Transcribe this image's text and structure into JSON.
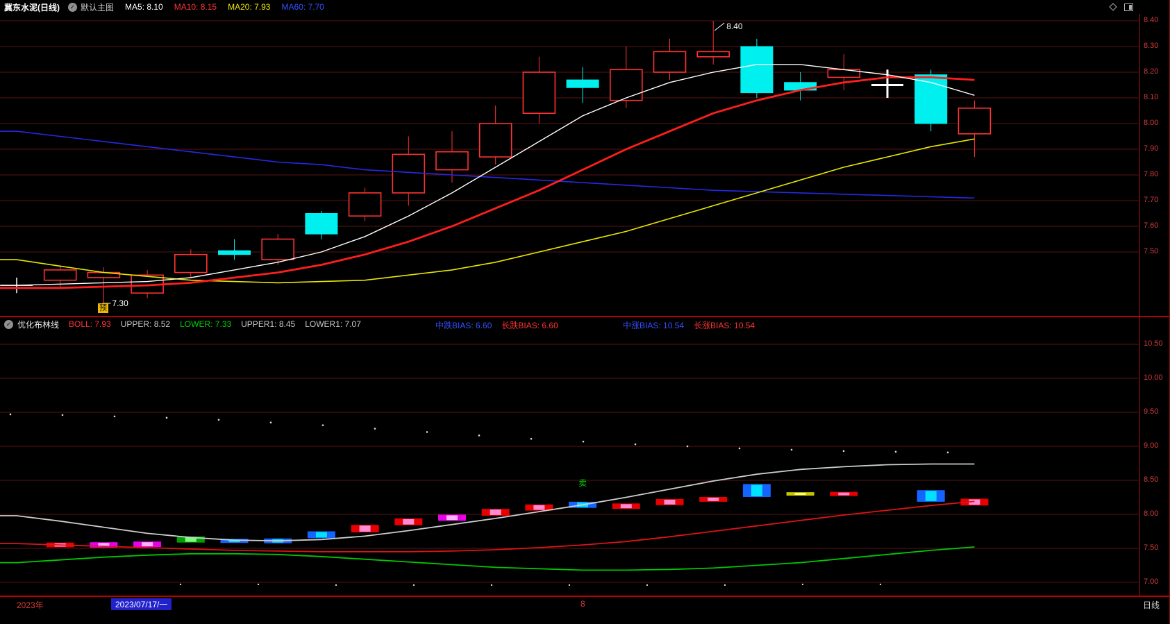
{
  "top_bar": {
    "title": "冀东水泥(日线)",
    "layout_label": "默认主图",
    "ma": [
      {
        "label": "MA5: 8.10",
        "color": "#ffffff"
      },
      {
        "label": "MA10: 8.15",
        "color": "#ff3232"
      },
      {
        "label": "MA20: 7.93",
        "color": "#e8e800"
      },
      {
        "label": "MA60: 7.70",
        "color": "#3250ff"
      }
    ]
  },
  "icons": {
    "check": "✓"
  },
  "indicator_bar": {
    "name": "优化布林线",
    "boll_fields": [
      {
        "label": "BOLL: 7.93",
        "color": "#ff3232"
      },
      {
        "label": "UPPER: 8.52",
        "color": "#c8c8c8"
      },
      {
        "label": "LOWER: 7.33",
        "color": "#00d200"
      },
      {
        "label": "UPPER1: 8.45",
        "color": "#c8c8c8"
      },
      {
        "label": "LOWER1: 7.07",
        "color": "#c8c8c8"
      }
    ],
    "bias_mid": [
      {
        "label": "中跌BIAS: 6.60",
        "color": "#3250ff"
      },
      {
        "label": "长跌BIAS: 6.60",
        "color": "#ff3232"
      }
    ],
    "bias_long": [
      {
        "label": "中涨BIAS: 10.54",
        "color": "#3250ff"
      },
      {
        "label": "长涨BIAS: 10.54",
        "color": "#ff3232"
      }
    ]
  },
  "bottom_bar": {
    "year": "2023年",
    "date": "2023/07/17/一",
    "month_marker": "8",
    "period": "日线"
  },
  "chart_data": {
    "type": "candlestick",
    "flag": "预",
    "main_axis": [
      "8.40",
      "8.30",
      "8.20",
      "8.10",
      "8.00",
      "7.90",
      "7.80",
      "7.70",
      "7.60",
      "7.50"
    ],
    "lower_axis": [
      "10.50",
      "10.00",
      "9.50",
      "9.00",
      "8.50",
      "8.00",
      "7.50",
      "7.00"
    ],
    "colors": {
      "up": "#ff3232",
      "down": "#00f0f0",
      "grid": "#571414",
      "axis_text": "#d23c3c",
      "ma5": "#ffffff",
      "ma10": "#ff1e1e",
      "ma20": "#e8e800",
      "ma60": "#2828e6",
      "boll_mid": "#cccccc",
      "boll_lower": "#dd1414",
      "boll_green": "#00c800",
      "bars": {
        "red": {
          "outer": "#e80000",
          "inner": "#ff8ad8"
        },
        "blue": {
          "outer": "#1464ff",
          "inner": "#00e0ff"
        },
        "green": {
          "outer": "#00a000",
          "inner": "#7dff7d"
        },
        "magenta": {
          "outer": "#e800e8",
          "inner": "#ffb0ff"
        },
        "yellow": {
          "outer": "#c8c800",
          "inner": "#ffff80"
        }
      }
    },
    "candles": [
      {
        "t": "cross",
        "o": 7.37,
        "c": 7.37,
        "h": 7.4,
        "l": 7.34
      },
      {
        "t": "up",
        "o": 7.39,
        "c": 7.43,
        "h": 7.45,
        "l": 7.36
      },
      {
        "t": "up",
        "o": 7.4,
        "c": 7.42,
        "h": 7.44,
        "l": 7.3
      },
      {
        "t": "up",
        "o": 7.34,
        "c": 7.41,
        "h": 7.43,
        "l": 7.32
      },
      {
        "t": "up",
        "o": 7.42,
        "c": 7.49,
        "h": 7.51,
        "l": 7.4
      },
      {
        "t": "down",
        "o": 7.505,
        "c": 7.49,
        "h": 7.55,
        "l": 7.47
      },
      {
        "t": "up",
        "o": 7.47,
        "c": 7.55,
        "h": 7.57,
        "l": 7.45
      },
      {
        "t": "down",
        "o": 7.65,
        "c": 7.57,
        "h": 7.66,
        "l": 7.55
      },
      {
        "t": "up",
        "o": 7.64,
        "c": 7.73,
        "h": 7.75,
        "l": 7.62
      },
      {
        "t": "up",
        "o": 7.73,
        "c": 7.88,
        "h": 7.95,
        "l": 7.68
      },
      {
        "t": "up",
        "o": 7.82,
        "c": 7.89,
        "h": 7.97,
        "l": 7.77
      },
      {
        "t": "up",
        "o": 7.87,
        "c": 8.0,
        "h": 8.07,
        "l": 7.84
      },
      {
        "t": "up",
        "o": 8.04,
        "c": 8.2,
        "h": 8.26,
        "l": 8.0
      },
      {
        "t": "down",
        "o": 8.17,
        "c": 8.14,
        "h": 8.22,
        "l": 8.08
      },
      {
        "t": "up",
        "o": 8.09,
        "c": 8.21,
        "h": 8.3,
        "l": 8.06
      },
      {
        "t": "up",
        "o": 8.2,
        "c": 8.28,
        "h": 8.33,
        "l": 8.17
      },
      {
        "t": "up",
        "o": 8.26,
        "c": 8.28,
        "h": 8.4,
        "l": 8.23
      },
      {
        "t": "down",
        "o": 8.3,
        "c": 8.12,
        "h": 8.33,
        "l": 8.1
      },
      {
        "t": "down",
        "o": 8.16,
        "c": 8.13,
        "h": 8.2,
        "l": 8.09
      },
      {
        "t": "up",
        "o": 8.18,
        "c": 8.21,
        "h": 8.27,
        "l": 8.13
      },
      {
        "t": "cross",
        "o": 8.16,
        "c": 8.15,
        "h": 8.21,
        "l": 8.1,
        "bold": true
      },
      {
        "t": "down",
        "o": 8.19,
        "c": 8.0,
        "h": 8.21,
        "l": 7.97
      },
      {
        "t": "up",
        "o": 7.96,
        "c": 8.06,
        "h": 8.09,
        "l": 7.87
      }
    ],
    "ma": {
      "ma5": [
        7.37,
        7.375,
        7.38,
        7.385,
        7.4,
        7.43,
        7.46,
        7.5,
        7.56,
        7.64,
        7.73,
        7.83,
        7.93,
        8.03,
        8.1,
        8.16,
        8.2,
        8.23,
        8.23,
        8.21,
        8.19,
        8.16,
        8.11
      ],
      "ma10": [
        7.36,
        7.36,
        7.365,
        7.37,
        7.38,
        7.4,
        7.42,
        7.45,
        7.49,
        7.54,
        7.6,
        7.67,
        7.74,
        7.82,
        7.9,
        7.97,
        8.04,
        8.09,
        8.13,
        8.16,
        8.18,
        8.18,
        8.17
      ],
      "ma20": [
        7.47,
        7.445,
        7.42,
        7.405,
        7.39,
        7.385,
        7.38,
        7.385,
        7.39,
        7.41,
        7.43,
        7.46,
        7.5,
        7.54,
        7.58,
        7.63,
        7.68,
        7.73,
        7.78,
        7.83,
        7.87,
        7.91,
        7.94
      ],
      "ma60": [
        7.97,
        7.95,
        7.93,
        7.91,
        7.89,
        7.87,
        7.85,
        7.84,
        7.82,
        7.81,
        7.8,
        7.79,
        7.78,
        7.77,
        7.76,
        7.75,
        7.74,
        7.735,
        7.73,
        7.725,
        7.72,
        7.715,
        7.71
      ]
    },
    "annotations": [
      {
        "text": "8.40",
        "candle": 16,
        "at": "high"
      },
      {
        "text": "7.30",
        "candle": 2,
        "at": "low"
      }
    ],
    "lower": {
      "mid": [
        7.98,
        7.9,
        7.81,
        7.72,
        7.66,
        7.62,
        7.61,
        7.63,
        7.68,
        7.76,
        7.85,
        7.94,
        8.04,
        8.14,
        8.25,
        8.37,
        8.49,
        8.59,
        8.66,
        8.7,
        8.73,
        8.74,
        8.74
      ],
      "lower_red": [
        7.57,
        7.55,
        7.53,
        7.51,
        7.49,
        7.47,
        7.46,
        7.45,
        7.45,
        7.45,
        7.46,
        7.48,
        7.51,
        7.55,
        7.6,
        7.67,
        7.75,
        7.83,
        7.91,
        7.99,
        8.06,
        8.13,
        8.19
      ],
      "green": [
        7.29,
        7.33,
        7.37,
        7.4,
        7.42,
        7.42,
        7.41,
        7.38,
        7.34,
        7.3,
        7.26,
        7.22,
        7.2,
        7.18,
        7.18,
        7.19,
        7.21,
        7.25,
        7.29,
        7.35,
        7.41,
        7.47,
        7.52
      ],
      "bars": [
        null,
        {
          "v": 7.55,
          "h": 0.07,
          "color": "red"
        },
        {
          "v": 7.55,
          "h": 0.08,
          "color": "magenta"
        },
        {
          "v": 7.56,
          "h": 0.08,
          "color": "magenta"
        },
        {
          "v": 7.63,
          "h": 0.09,
          "color": "green"
        },
        {
          "v": 7.61,
          "h": 0.06,
          "color": "blue"
        },
        {
          "v": 7.61,
          "h": 0.07,
          "color": "blue"
        },
        {
          "v": 7.7,
          "h": 0.1,
          "color": "blue"
        },
        {
          "v": 7.79,
          "h": 0.11,
          "color": "red"
        },
        {
          "v": 7.89,
          "h": 0.1,
          "color": "red"
        },
        {
          "v": 7.95,
          "h": 0.09,
          "color": "magenta"
        },
        {
          "v": 8.03,
          "h": 0.1,
          "color": "red"
        },
        {
          "v": 8.1,
          "h": 0.09,
          "color": "red"
        },
        {
          "v": 8.14,
          "h": 0.09,
          "color": "blue"
        },
        {
          "v": 8.12,
          "h": 0.08,
          "color": "red"
        },
        {
          "v": 8.18,
          "h": 0.09,
          "color": "red"
        },
        {
          "v": 8.22,
          "h": 0.07,
          "color": "red"
        },
        {
          "v": 8.35,
          "h": 0.19,
          "color": "blue"
        },
        {
          "v": 8.3,
          "h": 0.05,
          "color": "yellow"
        },
        {
          "v": 8.3,
          "h": 0.06,
          "color": "red"
        },
        null,
        {
          "v": 8.27,
          "h": 0.17,
          "color": "blue"
        },
        {
          "v": 8.18,
          "h": 0.1,
          "color": "red"
        }
      ],
      "dots_upper": [
        9.47,
        9.46,
        9.44,
        9.42,
        9.39,
        9.35,
        9.31,
        9.26,
        9.21,
        9.16,
        9.11,
        9.07,
        9.03,
        9.0,
        8.97,
        8.95,
        8.93,
        8.92,
        8.91
      ],
      "dots_lower": [
        6.97,
        6.97,
        6.96,
        6.96,
        6.96,
        6.96,
        6.96,
        6.96,
        6.97,
        6.97
      ],
      "sell_marker": {
        "text": "卖",
        "candle": 13,
        "value": 8.42
      }
    }
  }
}
